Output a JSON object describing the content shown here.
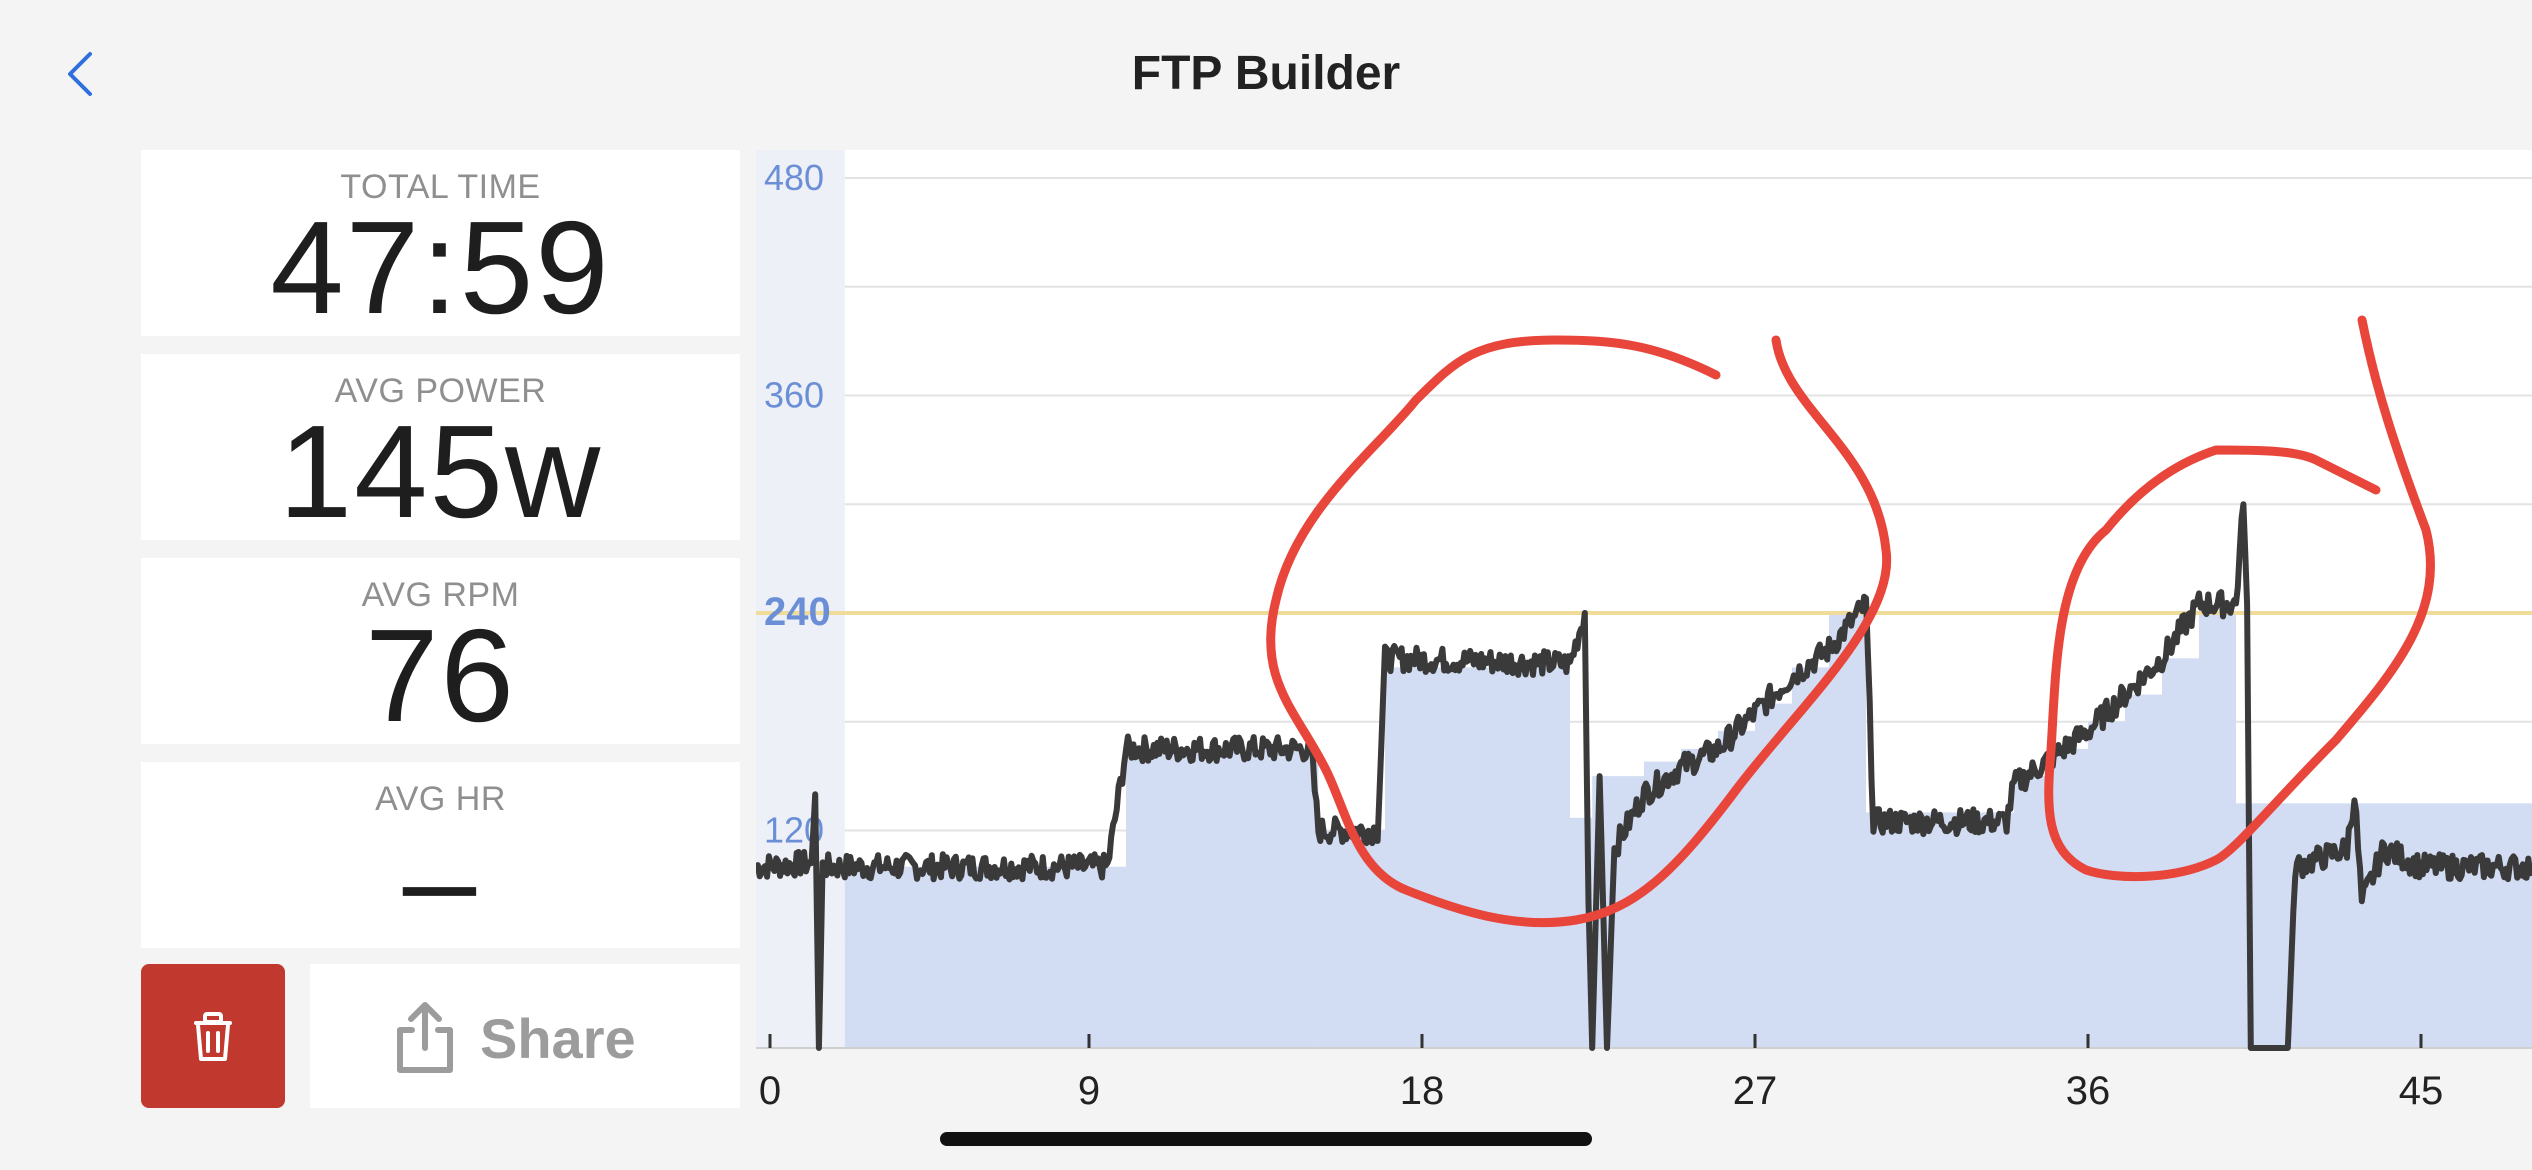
{
  "header": {
    "title": "FTP Builder",
    "back_icon": "chevron-left-icon",
    "accent_color": "#2f6fde"
  },
  "stats": [
    {
      "label": "TOTAL TIME",
      "value": "47:59"
    },
    {
      "label": "AVG POWER",
      "value": "145w"
    },
    {
      "label": "AVG RPM",
      "value": "76"
    },
    {
      "label": "AVG HR",
      "value": "–"
    }
  ],
  "actions": {
    "delete_icon": "trash-icon",
    "delete_color": "#c0382e",
    "share_icon": "share-icon",
    "share_label": "Share"
  },
  "chart_data": {
    "type": "line",
    "title": "",
    "xlabel": "",
    "ylabel": "",
    "x_ticks": [
      "0",
      "9",
      "18",
      "27",
      "36",
      "45"
    ],
    "y_ticks": [
      "480",
      "360",
      "240",
      "120"
    ],
    "xlim": [
      0,
      48
    ],
    "ylim": [
      0,
      480
    ],
    "ftp_line": 240,
    "grid": true,
    "colors": {
      "power": "#3a3a3a",
      "target": "#d2dcf2",
      "ftp": "#f0dc9a",
      "axis_label": "#6b8fd6",
      "annotation": "#e8453b"
    },
    "target_blocks": [
      {
        "x0": 2.4,
        "x1": 10.0,
        "y": 100
      },
      {
        "x0": 10.0,
        "x1": 15.2,
        "y": 165
      },
      {
        "x0": 15.2,
        "x1": 17.0,
        "y": 120
      },
      {
        "x0": 17.0,
        "x1": 22.0,
        "y": 210
      },
      {
        "x0": 22.0,
        "x1": 22.6,
        "y": 127
      },
      {
        "x0": 22.6,
        "x1": 24.0,
        "y": 150
      },
      {
        "x0": 24.0,
        "x1": 25.0,
        "y": 158
      },
      {
        "x0": 25.0,
        "x1": 26.0,
        "y": 165
      },
      {
        "x0": 26.0,
        "x1": 27.0,
        "y": 175
      },
      {
        "x0": 27.0,
        "x1": 28.0,
        "y": 190
      },
      {
        "x0": 28.0,
        "x1": 29.0,
        "y": 210
      },
      {
        "x0": 29.0,
        "x1": 30.0,
        "y": 240
      },
      {
        "x0": 30.0,
        "x1": 34.0,
        "y": 130
      },
      {
        "x0": 34.0,
        "x1": 35.0,
        "y": 150
      },
      {
        "x0": 35.0,
        "x1": 36.0,
        "y": 165
      },
      {
        "x0": 36.0,
        "x1": 37.0,
        "y": 180
      },
      {
        "x0": 37.0,
        "x1": 38.0,
        "y": 195
      },
      {
        "x0": 38.0,
        "x1": 39.0,
        "y": 215
      },
      {
        "x0": 39.0,
        "x1": 40.0,
        "y": 240
      },
      {
        "x0": 40.0,
        "x1": 48.0,
        "y": 135
      }
    ],
    "power": [
      [
        0,
        100
      ],
      [
        1.5,
        102
      ],
      [
        1.6,
        140
      ],
      [
        1.7,
        0
      ],
      [
        1.8,
        100
      ],
      [
        9.5,
        100
      ],
      [
        10.0,
        165
      ],
      [
        15.0,
        165
      ],
      [
        15.2,
        120
      ],
      [
        16.8,
        120
      ],
      [
        17.0,
        215
      ],
      [
        22.0,
        212
      ],
      [
        22.4,
        240
      ],
      [
        22.5,
        80
      ],
      [
        22.6,
        0
      ],
      [
        22.8,
        150
      ],
      [
        23.0,
        0
      ],
      [
        23.2,
        110
      ],
      [
        24.0,
        140
      ],
      [
        25.0,
        155
      ],
      [
        26.0,
        165
      ],
      [
        27.0,
        185
      ],
      [
        28.0,
        205
      ],
      [
        29.0,
        220
      ],
      [
        30.0,
        245
      ],
      [
        30.2,
        125
      ],
      [
        33.8,
        125
      ],
      [
        34.0,
        145
      ],
      [
        35.0,
        160
      ],
      [
        36.0,
        175
      ],
      [
        37.0,
        195
      ],
      [
        38.0,
        215
      ],
      [
        39.0,
        245
      ],
      [
        40.0,
        245
      ],
      [
        40.2,
        300
      ],
      [
        40.3,
        245
      ],
      [
        40.4,
        0
      ],
      [
        41.4,
        0
      ],
      [
        41.6,
        100
      ],
      [
        43.0,
        110
      ],
      [
        43.2,
        140
      ],
      [
        43.4,
        80
      ],
      [
        44.0,
        110
      ],
      [
        45.0,
        100
      ],
      [
        48.0,
        100
      ]
    ],
    "annotation_rings": [
      {
        "x_start": 27.5,
        "x_end": 15.2,
        "note": "red hand-drawn ring"
      },
      {
        "x_start": 43.5,
        "x_end": 35.5,
        "note": "red hand-drawn ring"
      }
    ]
  }
}
